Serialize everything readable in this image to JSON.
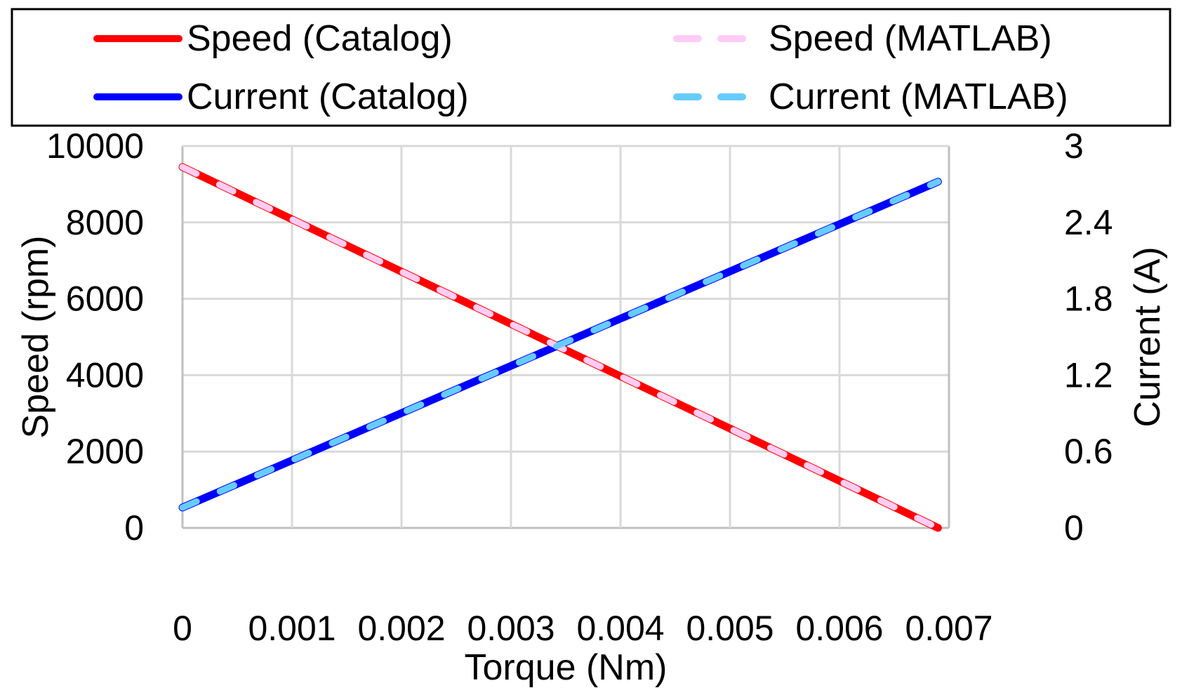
{
  "chart_data": {
    "type": "line",
    "title": "",
    "xlabel": "Torque (Nm)",
    "ylabel": "Speed (rpm)",
    "y2label": "Current (A)",
    "xlim": [
      0,
      0.007
    ],
    "ylim": [
      0,
      10000
    ],
    "y2lim": [
      0,
      3
    ],
    "grid": true,
    "legend_position": "top",
    "x_ticks": [
      "0",
      "0.001",
      "0.002",
      "0.003",
      "0.004",
      "0.005",
      "0.006",
      "0.007"
    ],
    "y_ticks": [
      "0",
      "2000",
      "4000",
      "6000",
      "8000",
      "10000"
    ],
    "y2_ticks": [
      "0",
      "0.6",
      "1.2",
      "1.8",
      "2.4",
      "3"
    ],
    "series": [
      {
        "name": "Speed (Catalog)",
        "axis": "left",
        "color": "#ff0000",
        "style": "solid",
        "x": [
          0,
          0.0069
        ],
        "values": [
          9450,
          0
        ]
      },
      {
        "name": "Current (Catalog)",
        "axis": "right",
        "color": "#0000ff",
        "style": "solid",
        "x": [
          0,
          0.0069
        ],
        "values": [
          0.16,
          2.72
        ]
      },
      {
        "name": "Speed (MATLAB)",
        "axis": "left",
        "color": "#ffccf5",
        "style": "dashed",
        "x": [
          0,
          0.0069
        ],
        "values": [
          9450,
          0
        ]
      },
      {
        "name": "Current (MATLAB)",
        "axis": "right",
        "color": "#66ccff",
        "style": "dashed",
        "x": [
          0,
          0.0069
        ],
        "values": [
          0.16,
          2.72
        ]
      }
    ]
  },
  "legend": {
    "items": [
      {
        "label": "Speed (Catalog)",
        "color": "#ff0000",
        "style": "solid"
      },
      {
        "label": "Current (Catalog)",
        "color": "#0000ff",
        "style": "solid"
      },
      {
        "label": "Speed (MATLAB)",
        "color": "#ffccf5",
        "style": "dashed"
      },
      {
        "label": "Current (MATLAB)",
        "color": "#66ccff",
        "style": "dashed"
      }
    ]
  },
  "colors": {
    "grid": "#d9d9d9",
    "axis": "#bfbfbf",
    "legend_border": "#000000"
  }
}
